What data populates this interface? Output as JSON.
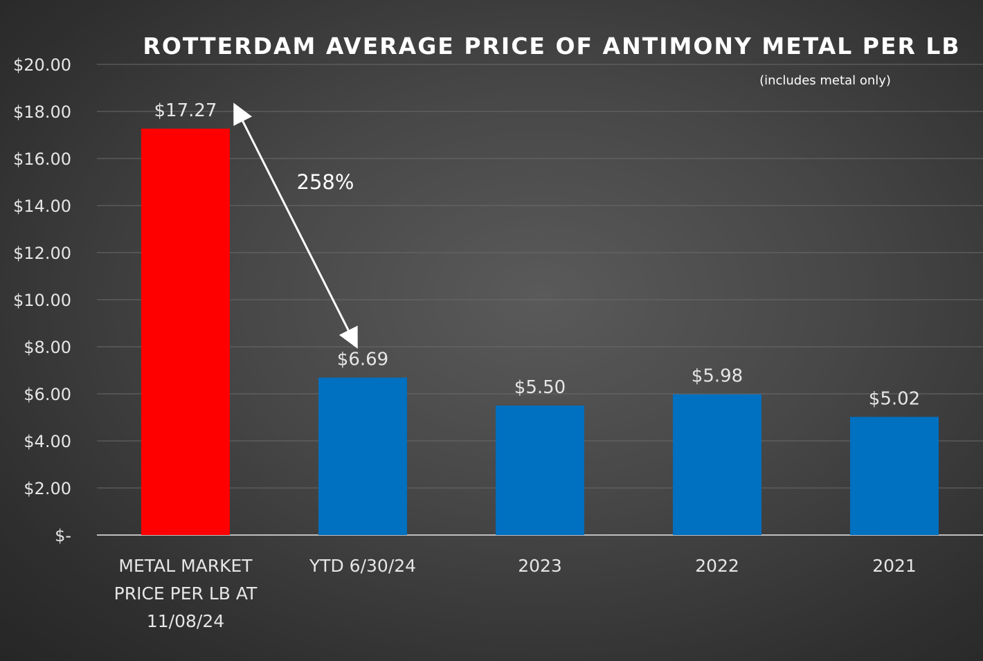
{
  "chart_data": {
    "type": "bar",
    "title": "ROTTERDAM AVERAGE PRICE OF ANTIMONY METAL PER LB",
    "subtitle": "(includes metal only)",
    "xlabel": "",
    "ylabel": "",
    "ylim": [
      0,
      20
    ],
    "ytick_values": [
      0,
      2,
      4,
      6,
      8,
      10,
      12,
      14,
      16,
      18,
      20
    ],
    "ytick_labels": [
      "$-",
      "$2.00",
      "$4.00",
      "$6.00",
      "$8.00",
      "$10.00",
      "$12.00",
      "$14.00",
      "$16.00",
      "$18.00",
      "$20.00"
    ],
    "grid": true,
    "categories": [
      [
        "METAL MARKET",
        "PRICE PER LB AT",
        "11/08/24"
      ],
      [
        "YTD 6/30/24"
      ],
      [
        "2023"
      ],
      [
        "2022"
      ],
      [
        "2021"
      ]
    ],
    "values": [
      17.27,
      6.69,
      5.5,
      5.98,
      5.02
    ],
    "value_labels": [
      "$17.27",
      "$6.69",
      "$5.50",
      "$5.98",
      "$5.02"
    ],
    "bar_colors": [
      "#ff0000",
      "#0070c0",
      "#0070c0",
      "#0070c0",
      "#0070c0"
    ],
    "annotation": {
      "text": "258%",
      "from_category": 0,
      "to_category": 1
    }
  },
  "colors": {
    "gridline": "#6a6a6a",
    "axis": "#bfbfbf",
    "arrow": "#ffffff"
  }
}
